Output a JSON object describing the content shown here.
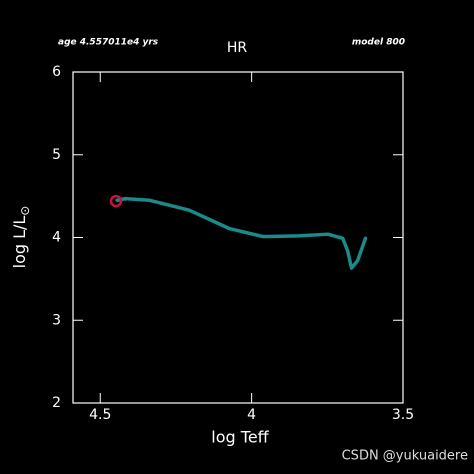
{
  "chart_data": {
    "type": "line",
    "title": "HR",
    "top_left_text": "age 4.557011e4 yrs",
    "top_right_text": "model 800",
    "xlabel": "log Teff",
    "ylabel": "log L/L",
    "ylabel_subscript": "⊙",
    "watermark": "CSDN @yukuaidere",
    "x": [
      4.444,
      4.418,
      4.337,
      4.206,
      4.075,
      3.961,
      3.846,
      3.748,
      3.699,
      3.683,
      3.67,
      3.65,
      3.624
    ],
    "series": [
      {
        "color": "#1a8a8a",
        "values": [
          4.45,
          4.47,
          4.45,
          4.33,
          4.11,
          4.01,
          4.02,
          4.04,
          3.99,
          3.84,
          3.63,
          3.72,
          3.99
        ]
      }
    ],
    "marker": {
      "x": 4.448,
      "y": 4.44,
      "color": "#c8143c"
    },
    "xlim": [
      4.59,
      3.5
    ],
    "ylim": [
      2,
      6
    ],
    "xticks": [
      4.5,
      4,
      3.5
    ],
    "yticks": [
      2,
      3,
      4,
      5,
      6
    ]
  }
}
